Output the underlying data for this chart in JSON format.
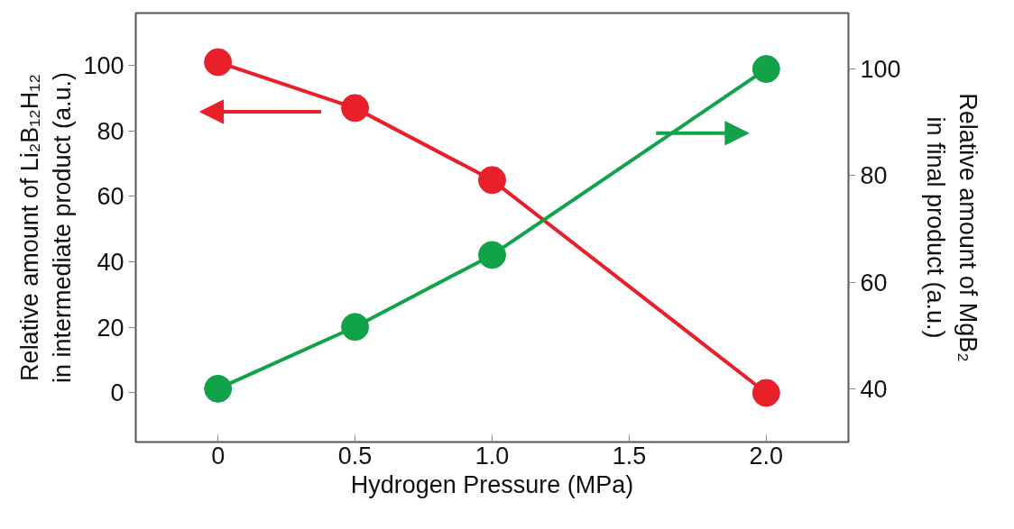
{
  "chart_data": {
    "type": "line",
    "xlabel": "Hydrogen Pressure (MPa)",
    "ylabel": "Relative amount of Li₂B₁₂H₁₂\nin intermediate product (a.u.)",
    "y2label": "Relative amount of MgB₂\nin final product (a.u.)",
    "x": [
      0,
      0.5,
      1.0,
      2.0
    ],
    "series": [
      {
        "color": "#e8202a",
        "values": [
          101,
          87,
          65,
          0
        ]
      },
      {
        "color": "#12a24a",
        "values": [
          40,
          51.6,
          65.1,
          100
        ],
        "axis": "y2"
      }
    ],
    "xlim": [
      -0.3,
      2.3
    ],
    "xticks": [
      0,
      0.5,
      {
        "value": 1,
        "label": "1.0"
      },
      1.5,
      {
        "value": 2,
        "label": "2.0"
      }
    ],
    "ylim": [
      -15,
      116
    ],
    "yticks": [
      0,
      20,
      40,
      60,
      80,
      100
    ],
    "y2lim": [
      30,
      110.5
    ],
    "y2ticks": [
      40,
      60,
      80,
      100
    ],
    "marker": "circle",
    "grid": false
  }
}
